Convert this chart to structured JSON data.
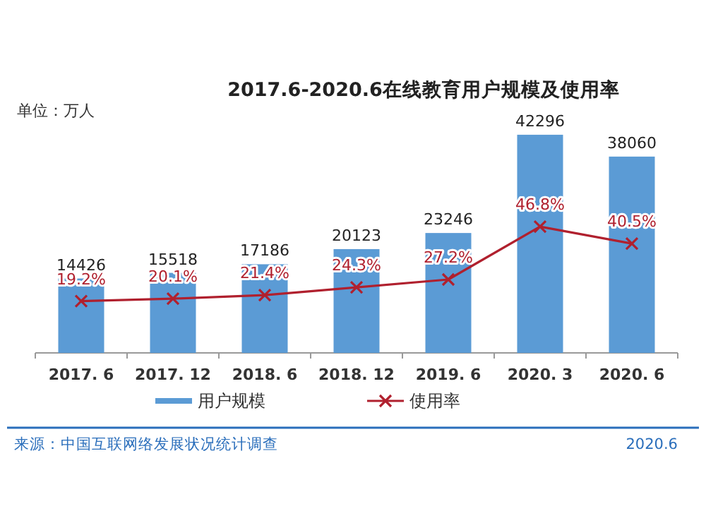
{
  "chart_data": {
    "type": "bar",
    "title": "2017.6-2020.6在线教育用户规模及使用率",
    "categories": [
      "2017. 6",
      "2017. 12",
      "2018. 6",
      "2018. 12",
      "2019. 6",
      "2020. 3",
      "2020. 6"
    ],
    "series": [
      {
        "name": "用户规模",
        "color": "#5b9bd5",
        "values": [
          14426,
          15518,
          17186,
          20123,
          23246,
          42296,
          38060
        ]
      },
      {
        "name": "使用率",
        "type": "line",
        "axis": "y2",
        "color": "#b0202e",
        "values": [
          19.2,
          20.1,
          21.4,
          24.3,
          27.2,
          46.8,
          40.5
        ],
        "value_labels": [
          "19.2%",
          "20.1%",
          "21.4%",
          "24.3%",
          "27.2%",
          "46.8%",
          "40.5%"
        ]
      }
    ],
    "data_labels": true,
    "marker": "cross",
    "legend": "bottom",
    "grid": false,
    "annotations": [
      "单位：万人",
      "来源：中国互联网络发展状况统计调查",
      "2020.6"
    ]
  }
}
